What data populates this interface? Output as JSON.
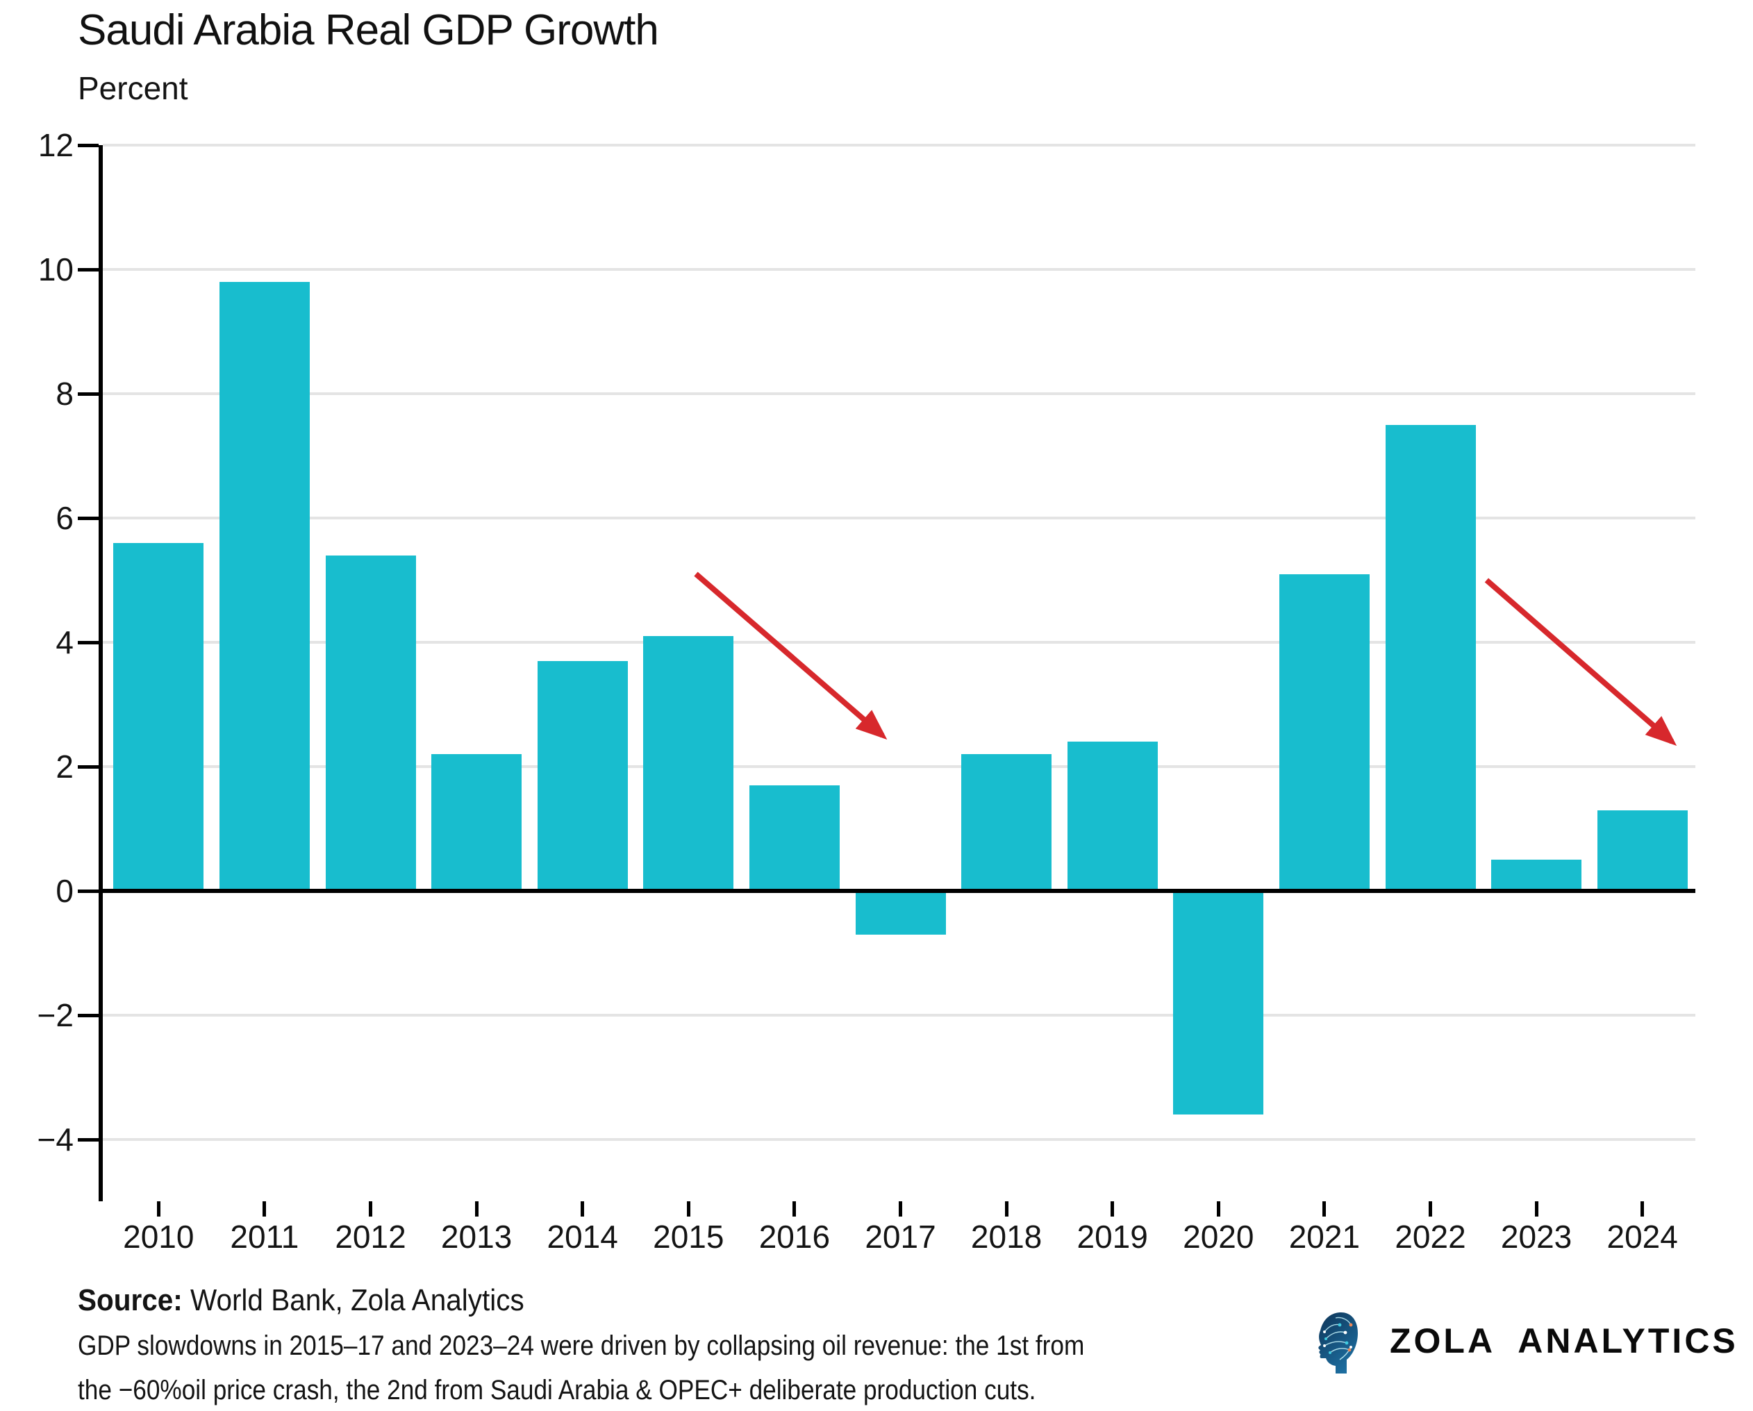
{
  "header": {
    "title": "Saudi Arabia Real GDP Growth",
    "subtitle": "Percent"
  },
  "chart_data": {
    "type": "bar",
    "title": "Saudi Arabia Real GDP Growth",
    "ylabel": "Percent",
    "xlabel": "",
    "categories": [
      "2010",
      "2011",
      "2012",
      "2013",
      "2014",
      "2015",
      "2016",
      "2017",
      "2018",
      "2019",
      "2020",
      "2021",
      "2022",
      "2023",
      "2024"
    ],
    "values": [
      5.6,
      9.8,
      5.4,
      2.2,
      3.7,
      4.1,
      1.7,
      -0.7,
      2.2,
      2.4,
      -3.6,
      5.1,
      7.5,
      0.5,
      1.3
    ],
    "yticks": [
      -4,
      -2,
      0,
      2,
      4,
      6,
      8,
      10,
      12
    ],
    "ylim": [
      -4.9,
      12
    ],
    "grid": true,
    "legend": "none",
    "bar_color": "#18bdce",
    "grid_color": "#e4e4e4",
    "axis_color": "#000000",
    "annotations": [
      {
        "type": "arrow",
        "color": "#d7282c",
        "from": {
          "pos": 5.57,
          "value": 5.1
        },
        "to": {
          "pos": 7.33,
          "value": 2.5
        }
      },
      {
        "type": "arrow",
        "color": "#d7282c",
        "from": {
          "pos": 13.03,
          "value": 5.0
        },
        "to": {
          "pos": 14.78,
          "value": 2.4
        }
      }
    ]
  },
  "footer": {
    "source_label": "Source:",
    "source_text": " World Bank, Zola Analytics",
    "note_line1": "GDP slowdowns in 2015–17 and 2023–24 were driven by collapsing oil revenue: the 1st from",
    "note_line2": "the −60%oil price crash, the 2nd from Saudi Arabia & OPEC+ deliberate production cuts."
  },
  "logo": {
    "text": "ZOLA ANALYTICS",
    "head_color": "#0e3457",
    "head_color_light": "#1d6ea0",
    "trace_color": "#bfeef7",
    "node_color": "#3ecbdf",
    "accent_color": "#ee8757"
  }
}
